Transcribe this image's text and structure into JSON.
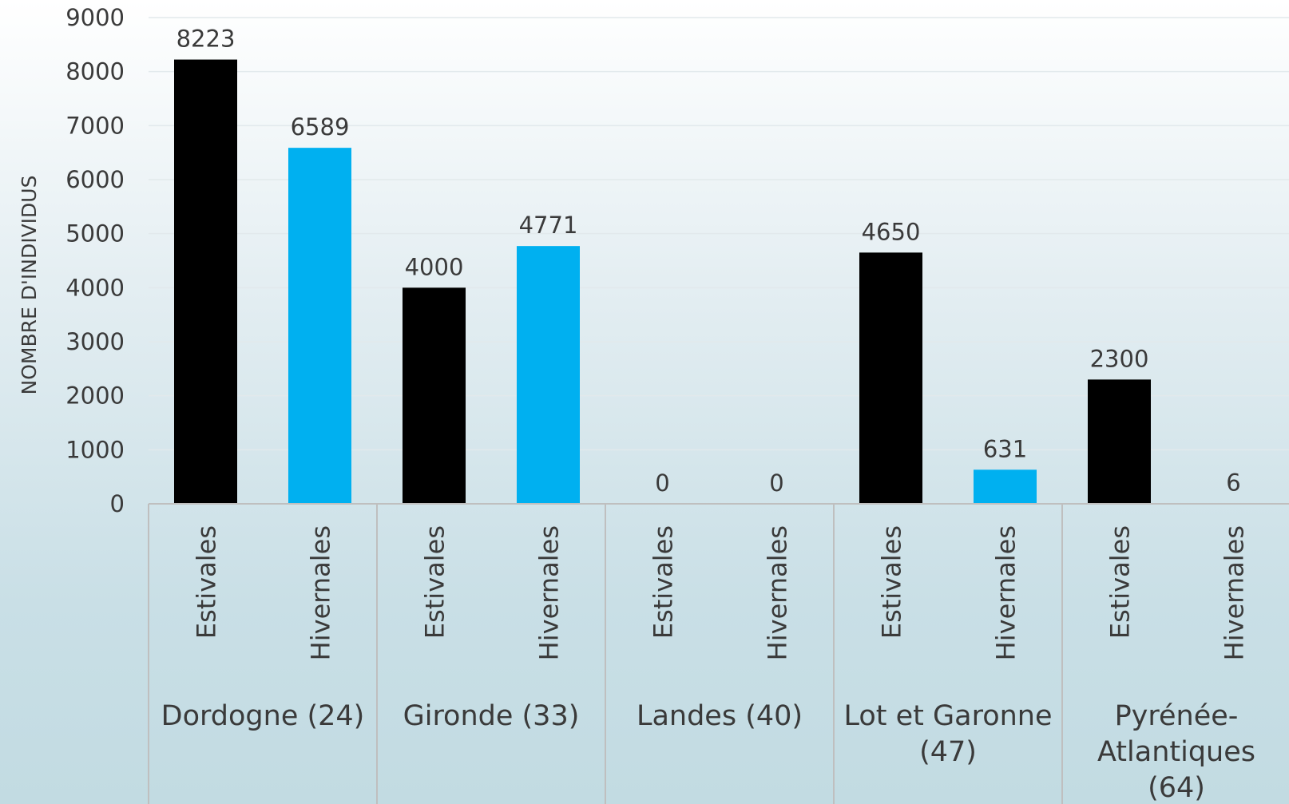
{
  "chart_data": {
    "type": "bar",
    "ylabel": "NOMBRE D'INDIVIDUS",
    "ylim": [
      0,
      9000
    ],
    "yticks": [
      "0",
      "1000",
      "2000",
      "3000",
      "4000",
      "5000",
      "6000",
      "7000",
      "8000",
      "9000"
    ],
    "grid": true,
    "groups": [
      {
        "label": [
          "Dordogne (24)"
        ],
        "bars": [
          {
            "series": "Estivales",
            "value": 8223,
            "color": "#000000"
          },
          {
            "series": "Hivernales",
            "value": 6589,
            "color": "#00b0f0"
          }
        ]
      },
      {
        "label": [
          "Gironde (33)"
        ],
        "bars": [
          {
            "series": "Estivales",
            "value": 4000,
            "color": "#000000"
          },
          {
            "series": "Hivernales",
            "value": 4771,
            "color": "#00b0f0"
          }
        ]
      },
      {
        "label": [
          "Landes (40)"
        ],
        "bars": [
          {
            "series": "Estivales",
            "value": 0,
            "color": "#000000"
          },
          {
            "series": "Hivernales",
            "value": 0,
            "color": "#00b0f0"
          }
        ]
      },
      {
        "label": [
          "Lot et Garonne",
          "(47)"
        ],
        "bars": [
          {
            "series": "Estivales",
            "value": 4650,
            "color": "#000000"
          },
          {
            "series": "Hivernales",
            "value": 631,
            "color": "#00b0f0"
          }
        ]
      },
      {
        "label": [
          "Pyrénée-",
          "Atlantiques",
          "(64)"
        ],
        "bars": [
          {
            "series": "Estivales",
            "value": 2300,
            "color": "#000000"
          },
          {
            "series": "Hivernales",
            "value": 6,
            "color": "#00b0f0"
          }
        ]
      }
    ],
    "colors": {
      "estivales": "#000000",
      "hivernales": "#00b0f0",
      "grid": "#e2e9ec",
      "axis": "#bfbfbf",
      "text": "#3a3a3a"
    }
  }
}
